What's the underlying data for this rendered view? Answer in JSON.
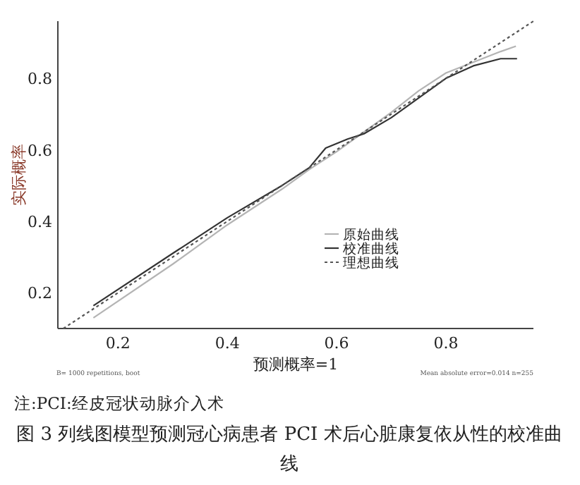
{
  "chart_data": {
    "type": "line",
    "title": "图 3  列线图模型预测冠心病患者 PCI 术后心脏康复依从性的校准曲线",
    "xlabel": "预测概率=1",
    "ylabel": "实际概率",
    "annotations": [
      "B= 1000 repetitions, boot",
      "Mean absolute error=0.014 n=255",
      "注:PCI:经皮冠状动脉介入术"
    ],
    "xlim": [
      0.09,
      0.96
    ],
    "ylim": [
      0.1,
      0.96
    ],
    "xticks": [
      0.2,
      0.4,
      0.6,
      0.8
    ],
    "yticks": [
      0.2,
      0.4,
      0.6,
      0.8
    ],
    "grid": false,
    "legend": "center",
    "marker": "none",
    "series": [
      {
        "name": "原始曲线",
        "color": "#b4b4b4",
        "line_style": "solid",
        "x": [
          0.155,
          0.3,
          0.4,
          0.5,
          0.55,
          0.6,
          0.65,
          0.7,
          0.75,
          0.8,
          0.85,
          0.9,
          0.928
        ],
        "values": [
          0.13,
          0.28,
          0.39,
          0.49,
          0.545,
          0.595,
          0.65,
          0.705,
          0.765,
          0.815,
          0.845,
          0.875,
          0.89
        ]
      },
      {
        "name": "校准曲线",
        "color": "#333333",
        "line_style": "solid",
        "x": [
          0.155,
          0.3,
          0.4,
          0.5,
          0.55,
          0.58,
          0.62,
          0.65,
          0.7,
          0.8,
          0.85,
          0.9,
          0.93
        ],
        "values": [
          0.164,
          0.31,
          0.41,
          0.5,
          0.55,
          0.605,
          0.63,
          0.645,
          0.69,
          0.8,
          0.835,
          0.855,
          0.855
        ]
      },
      {
        "name": "理想曲线",
        "color": "#555555",
        "line_style": "dotted",
        "x": [
          0.1,
          0.96
        ],
        "values": [
          0.1,
          0.96
        ]
      }
    ]
  }
}
